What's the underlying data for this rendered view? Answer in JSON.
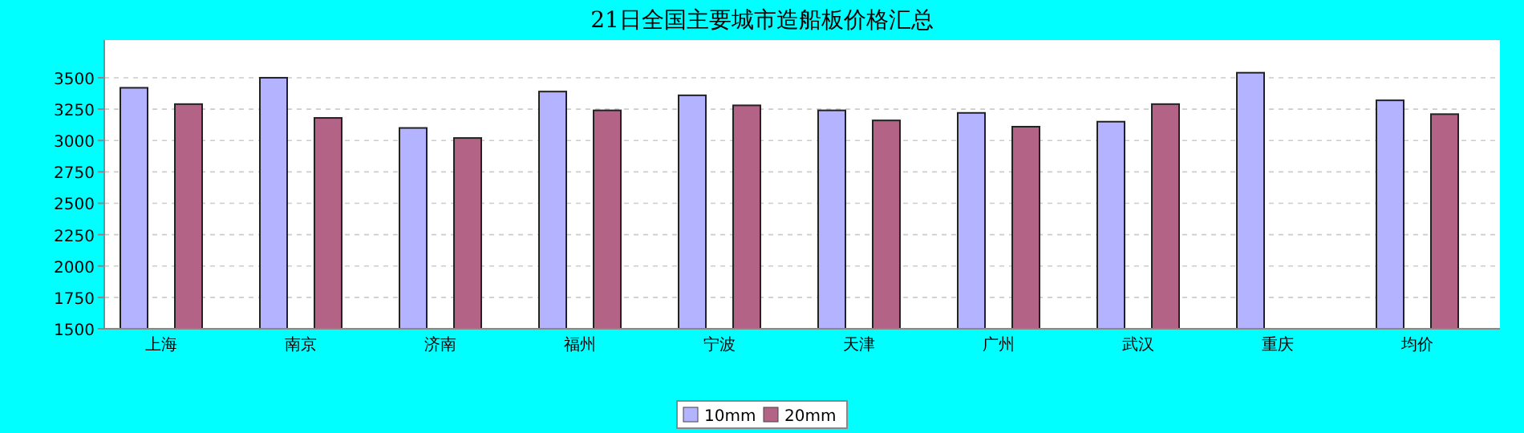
{
  "chart_data": {
    "type": "bar",
    "title": "21日全国主要城市造船板价格汇总",
    "categories": [
      "上海",
      "南京",
      "济南",
      "福州",
      "宁波",
      "天津",
      "广州",
      "武汉",
      "重庆",
      "均价"
    ],
    "series": [
      {
        "name": "10mm",
        "color": "#b3b3ff",
        "values": [
          3420,
          3500,
          3100,
          3390,
          3360,
          3240,
          3220,
          3150,
          3540,
          3320
        ]
      },
      {
        "name": "20mm",
        "color": "#b36385",
        "values": [
          3290,
          3180,
          3020,
          3240,
          3280,
          3160,
          3110,
          3290,
          null,
          3210
        ]
      }
    ],
    "ylim": [
      1500,
      3800
    ],
    "yticks": [
      1500,
      1750,
      2000,
      2250,
      2500,
      2750,
      3000,
      3250,
      3500
    ],
    "grid": "y",
    "legend": "bottom"
  }
}
